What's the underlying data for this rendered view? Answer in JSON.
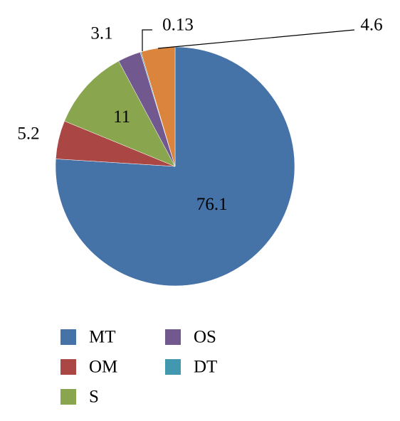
{
  "chart_data": {
    "type": "pie",
    "categories": [
      "MT",
      "OM",
      "S",
      "OS",
      "DT",
      null
    ],
    "values": [
      76.1,
      5.2,
      11,
      3.1,
      0.13,
      4.6
    ],
    "colors": [
      "#4572a7",
      "#aa4643",
      "#89a54e",
      "#71588f",
      "#4198af",
      "#db843d"
    ],
    "legend": "bottom"
  }
}
